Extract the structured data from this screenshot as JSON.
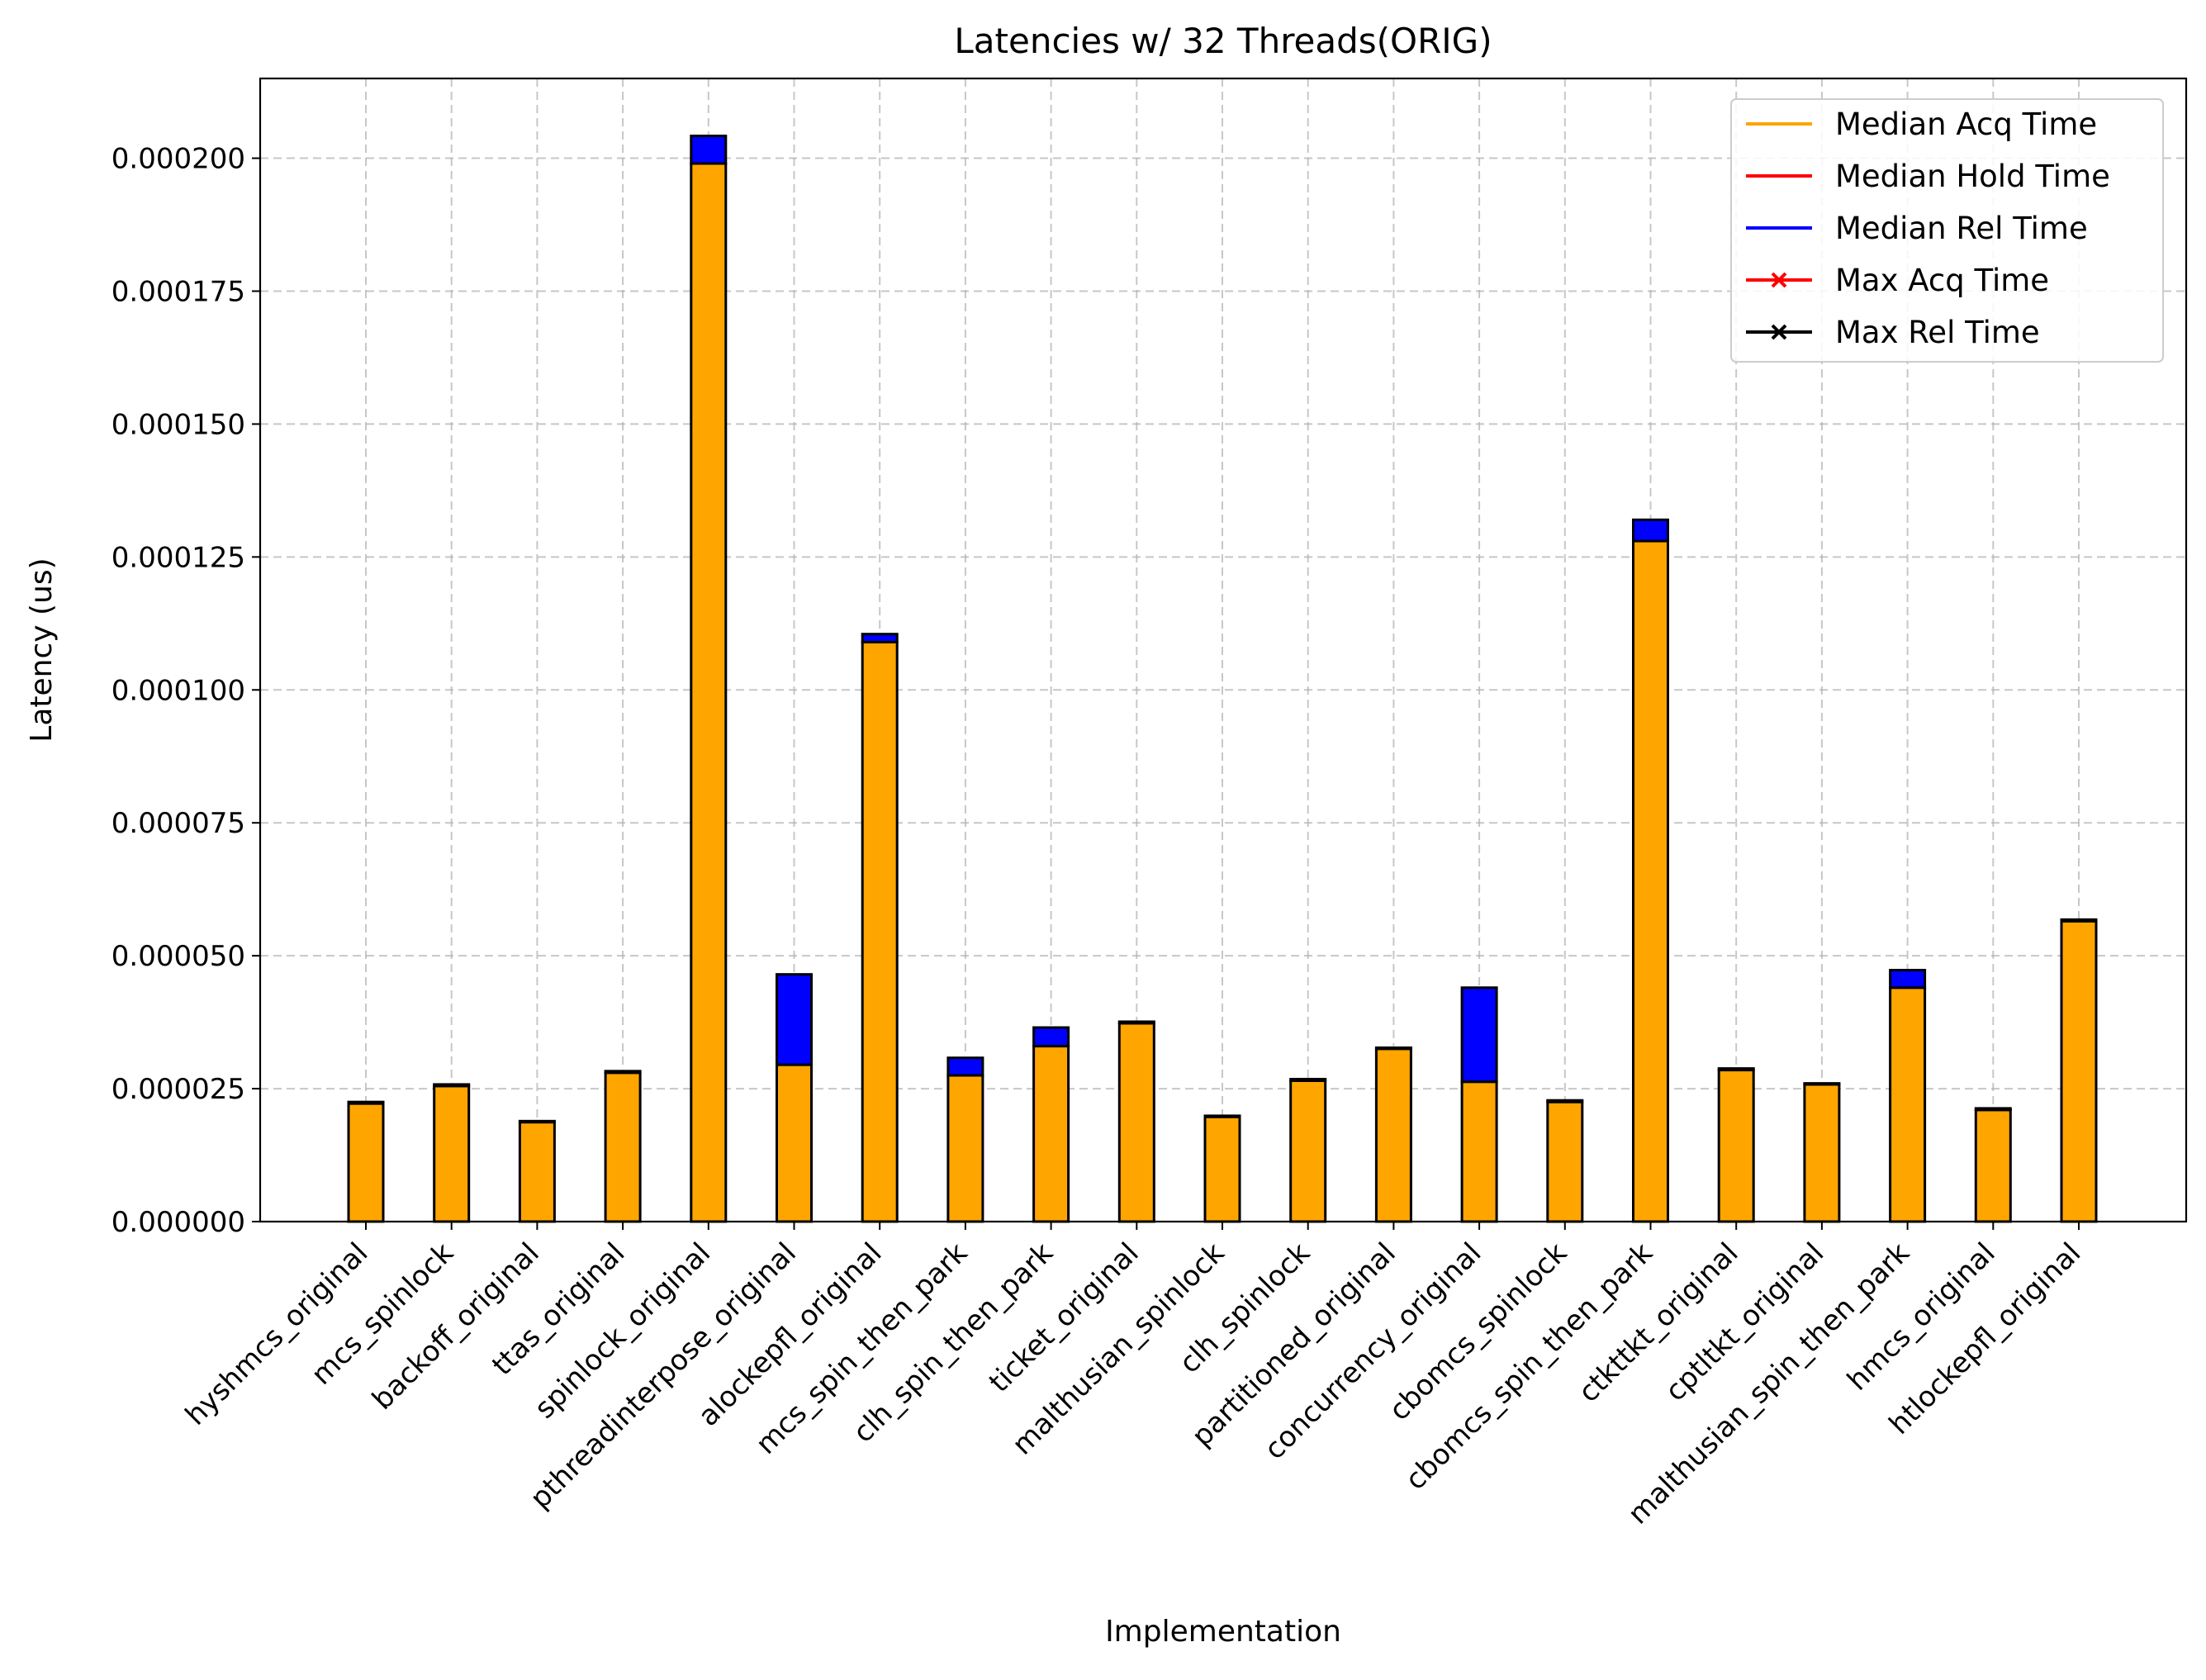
{
  "chart_data": {
    "type": "bar",
    "stacked": true,
    "title": "Latencies w/ 32 Threads(ORIG)",
    "xlabel": "Implementation",
    "ylabel": "Latency (us)",
    "ylim": [
      0,
      0.000215
    ],
    "yticks": [
      "0.000000",
      "0.000025",
      "0.000050",
      "0.000075",
      "0.000100",
      "0.000125",
      "0.000150",
      "0.000175",
      "0.000200"
    ],
    "ytick_values": [
      0,
      2.5e-05,
      5e-05,
      7.5e-05,
      0.0001,
      0.000125,
      0.00015,
      0.000175,
      0.0002
    ],
    "grid": true,
    "legend_position": "top-right",
    "categories": [
      "hyshmcs_original",
      "mcs_spinlock",
      "backoff_original",
      "ttas_original",
      "spinlock_original",
      "pthreadinterpose_original",
      "alockepfl_original",
      "mcs_spin_then_park",
      "clh_spin_then_park",
      "ticket_original",
      "malthusian_spinlock",
      "clh_spinlock",
      "partitioned_original",
      "concurrency_original",
      "cbomcs_spinlock",
      "cbomcs_spin_then_park",
      "ctkttkt_original",
      "cptltkt_original",
      "malthusian_spin_then_park",
      "hmcs_original",
      "htlockepfl_original"
    ],
    "series": [
      {
        "name": "Median Acq Time",
        "color": "#ffa500",
        "values": [
          2.22e-05,
          2.55e-05,
          1.87e-05,
          2.8e-05,
          0.000199,
          2.95e-05,
          0.000109,
          2.75e-05,
          3.3e-05,
          3.73e-05,
          1.97e-05,
          2.65e-05,
          3.25e-05,
          2.63e-05,
          2.25e-05,
          0.000128,
          2.85e-05,
          2.58e-05,
          4.4e-05,
          2.1e-05,
          5.65e-05
        ]
      },
      {
        "name": "Median Hold Time",
        "color": "#ff0000",
        "values": [
          0,
          0,
          0,
          0,
          0,
          0,
          0,
          0,
          0,
          0,
          0,
          0,
          0,
          0,
          0,
          0,
          0,
          0,
          0,
          0,
          0
        ]
      },
      {
        "name": "Median Rel Time",
        "color": "#0000ff",
        "values": [
          3e-07,
          3e-07,
          2e-07,
          3e-07,
          5.2e-06,
          1.7e-05,
          1.5e-06,
          3.3e-06,
          3.5e-06,
          3e-07,
          2e-07,
          3e-07,
          2e-07,
          1.77e-05,
          3e-07,
          4e-06,
          3e-07,
          2e-07,
          3.3e-06,
          3e-07,
          3e-07
        ]
      }
    ],
    "markers": [
      {
        "name": "Max Acq Time",
        "color": "#ff0000",
        "marker": "x"
      },
      {
        "name": "Max Rel Time",
        "color": "#000000",
        "marker": "x"
      }
    ]
  }
}
